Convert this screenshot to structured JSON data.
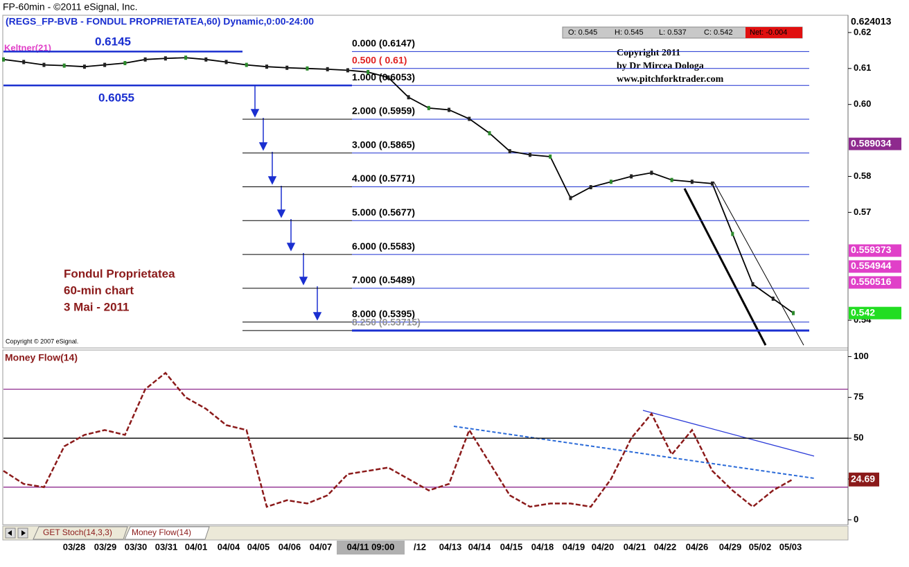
{
  "header": {
    "window_title": "FP-60min - ©2011 eSignal, Inc.",
    "symbol": "(REGS_FP-BVB - FONDUL PROPRIETATEA,60) Dynamic,0:00-24:00"
  },
  "ohlc": {
    "open": "O: 0.545",
    "high": "H: 0.545",
    "low": "L: 0.537",
    "close": "C: 0.542",
    "net": "Net: -0.004"
  },
  "price_chart": {
    "indicator": "Keltner(21)",
    "range_high": "0.6145",
    "range_low": "0.6055",
    "copyright_note": [
      "Copyright 2011",
      "by Dr Mircea Dologa",
      "www.pitchforktrader.com"
    ],
    "annotation": [
      "Fondul Proprietatea",
      "60-min chart",
      "3 Mai - 2011"
    ],
    "vendor_note": "Copyright © 2007 eSignal.",
    "ylim": [
      0.5323,
      0.6248
    ],
    "yticks": [
      0.62,
      0.61,
      {
        "value": 0.6,
        "label": "0.60"
      },
      0.58,
      0.57,
      0.54
    ],
    "top_price": "0.624013",
    "price_markers": [
      {
        "value": 0.589034,
        "color": "#8e2a8e"
      },
      {
        "value": 0.559373,
        "color": "#e040c8"
      },
      {
        "value": 0.554944,
        "color": "#e040c8"
      },
      {
        "value": 0.550516,
        "color": "#e040c8"
      },
      {
        "value": 0.542,
        "color": "#22dd22"
      }
    ],
    "fib_levels": [
      {
        "price": 0.6147,
        "label": "0.000 (0.6147)",
        "color": "#000000"
      },
      {
        "price": 0.61,
        "label": "0.500 ( 0.61)",
        "color": "#e02020"
      },
      {
        "price": 0.6053,
        "label": "1.000 (0.6053)",
        "color": "#000000"
      },
      {
        "price": 0.5959,
        "label": "2.000 (0.5959)",
        "color": "#000000"
      },
      {
        "price": 0.5865,
        "label": "3.000 (0.5865)",
        "color": "#000000"
      },
      {
        "price": 0.5771,
        "label": "4.000 (0.5771)",
        "color": "#000000"
      },
      {
        "price": 0.5677,
        "label": "5.000 (0.5677)",
        "color": "#000000"
      },
      {
        "price": 0.5583,
        "label": "6.000 (0.5583)",
        "color": "#000000"
      },
      {
        "price": 0.5489,
        "label": "7.000 (0.5489)",
        "color": "#000000"
      },
      {
        "price": 0.5395,
        "label": "8.000 (0.5395)",
        "color": "#000000"
      },
      {
        "price": 0.53715,
        "label": "8.250 (0.53715)",
        "color": "#909090"
      }
    ],
    "close": [
      0.6125,
      0.6118,
      0.611,
      0.6108,
      0.6105,
      0.611,
      0.6115,
      0.6125,
      0.6128,
      0.613,
      0.6125,
      0.6118,
      0.611,
      0.6105,
      0.6102,
      0.61,
      0.6098,
      0.6095,
      0.609,
      0.6075,
      0.602,
      0.599,
      0.5985,
      0.596,
      0.592,
      0.587,
      0.586,
      0.5855,
      0.574,
      0.577,
      0.5785,
      0.58,
      0.581,
      0.579,
      0.5785,
      0.578,
      0.564,
      0.55,
      0.546,
      0.542
    ]
  },
  "money_flow": {
    "title": "Money Flow(14)",
    "ylim": [
      -3,
      104
    ],
    "yticks": [
      0,
      25,
      50,
      75,
      100
    ],
    "levels": [
      80,
      50,
      20
    ],
    "last": 24.69,
    "values": [
      30,
      22,
      20,
      45,
      52,
      55,
      52,
      80,
      90,
      75,
      68,
      58,
      55,
      8,
      12,
      10,
      15,
      28,
      30,
      32,
      25,
      18,
      22,
      55,
      35,
      15,
      8,
      10,
      10,
      8,
      25,
      50,
      65,
      40,
      55,
      30,
      18,
      8,
      18,
      25
    ]
  },
  "tabs": [
    "GET Stoch(14,3,3)",
    "Money Flow(14)"
  ],
  "dates": [
    "03/28",
    "03/29",
    "03/30",
    "03/31",
    "04/01",
    "04/04",
    "04/05",
    "04/06",
    "04/07",
    "04/11 09:00",
    "/12",
    "04/13",
    "04/14",
    "04/15",
    "04/18",
    "04/19",
    "04/20",
    "04/21",
    "04/22",
    "04/26",
    "04/29",
    "05/02",
    "05/03"
  ]
}
